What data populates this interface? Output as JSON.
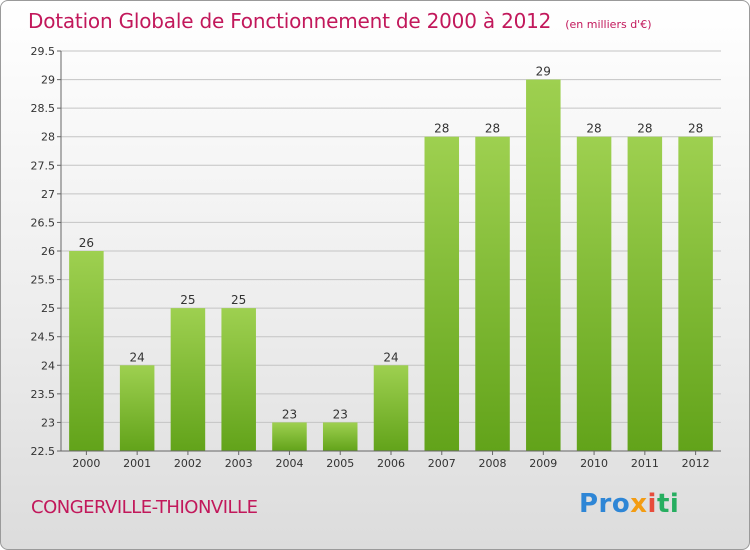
{
  "chart_data": {
    "type": "bar",
    "title": "Dotation Globale de Fonctionnement de 2000 à 2012",
    "subtitle": "(en milliers d'€)",
    "categories": [
      "2000",
      "2001",
      "2002",
      "2003",
      "2004",
      "2005",
      "2006",
      "2007",
      "2008",
      "2009",
      "2010",
      "2011",
      "2012"
    ],
    "values": [
      26,
      24,
      25,
      25,
      23,
      23,
      24,
      28,
      28,
      29,
      28,
      28,
      28
    ],
    "ylim": [
      22.5,
      29.5
    ],
    "yticks": [
      22.5,
      23,
      23.5,
      24,
      24.5,
      25,
      25.5,
      26,
      26.5,
      27,
      27.5,
      28,
      28.5,
      29,
      29.5
    ],
    "grid": true,
    "colors": {
      "bar_top": "#9ed050",
      "bar_bottom": "#62a31a",
      "title": "#c2185b"
    }
  },
  "footer": {
    "commune": "CONGERVILLE-THIONVILLE",
    "logo_parts": [
      "Pro",
      "x",
      "i",
      "ti"
    ]
  }
}
